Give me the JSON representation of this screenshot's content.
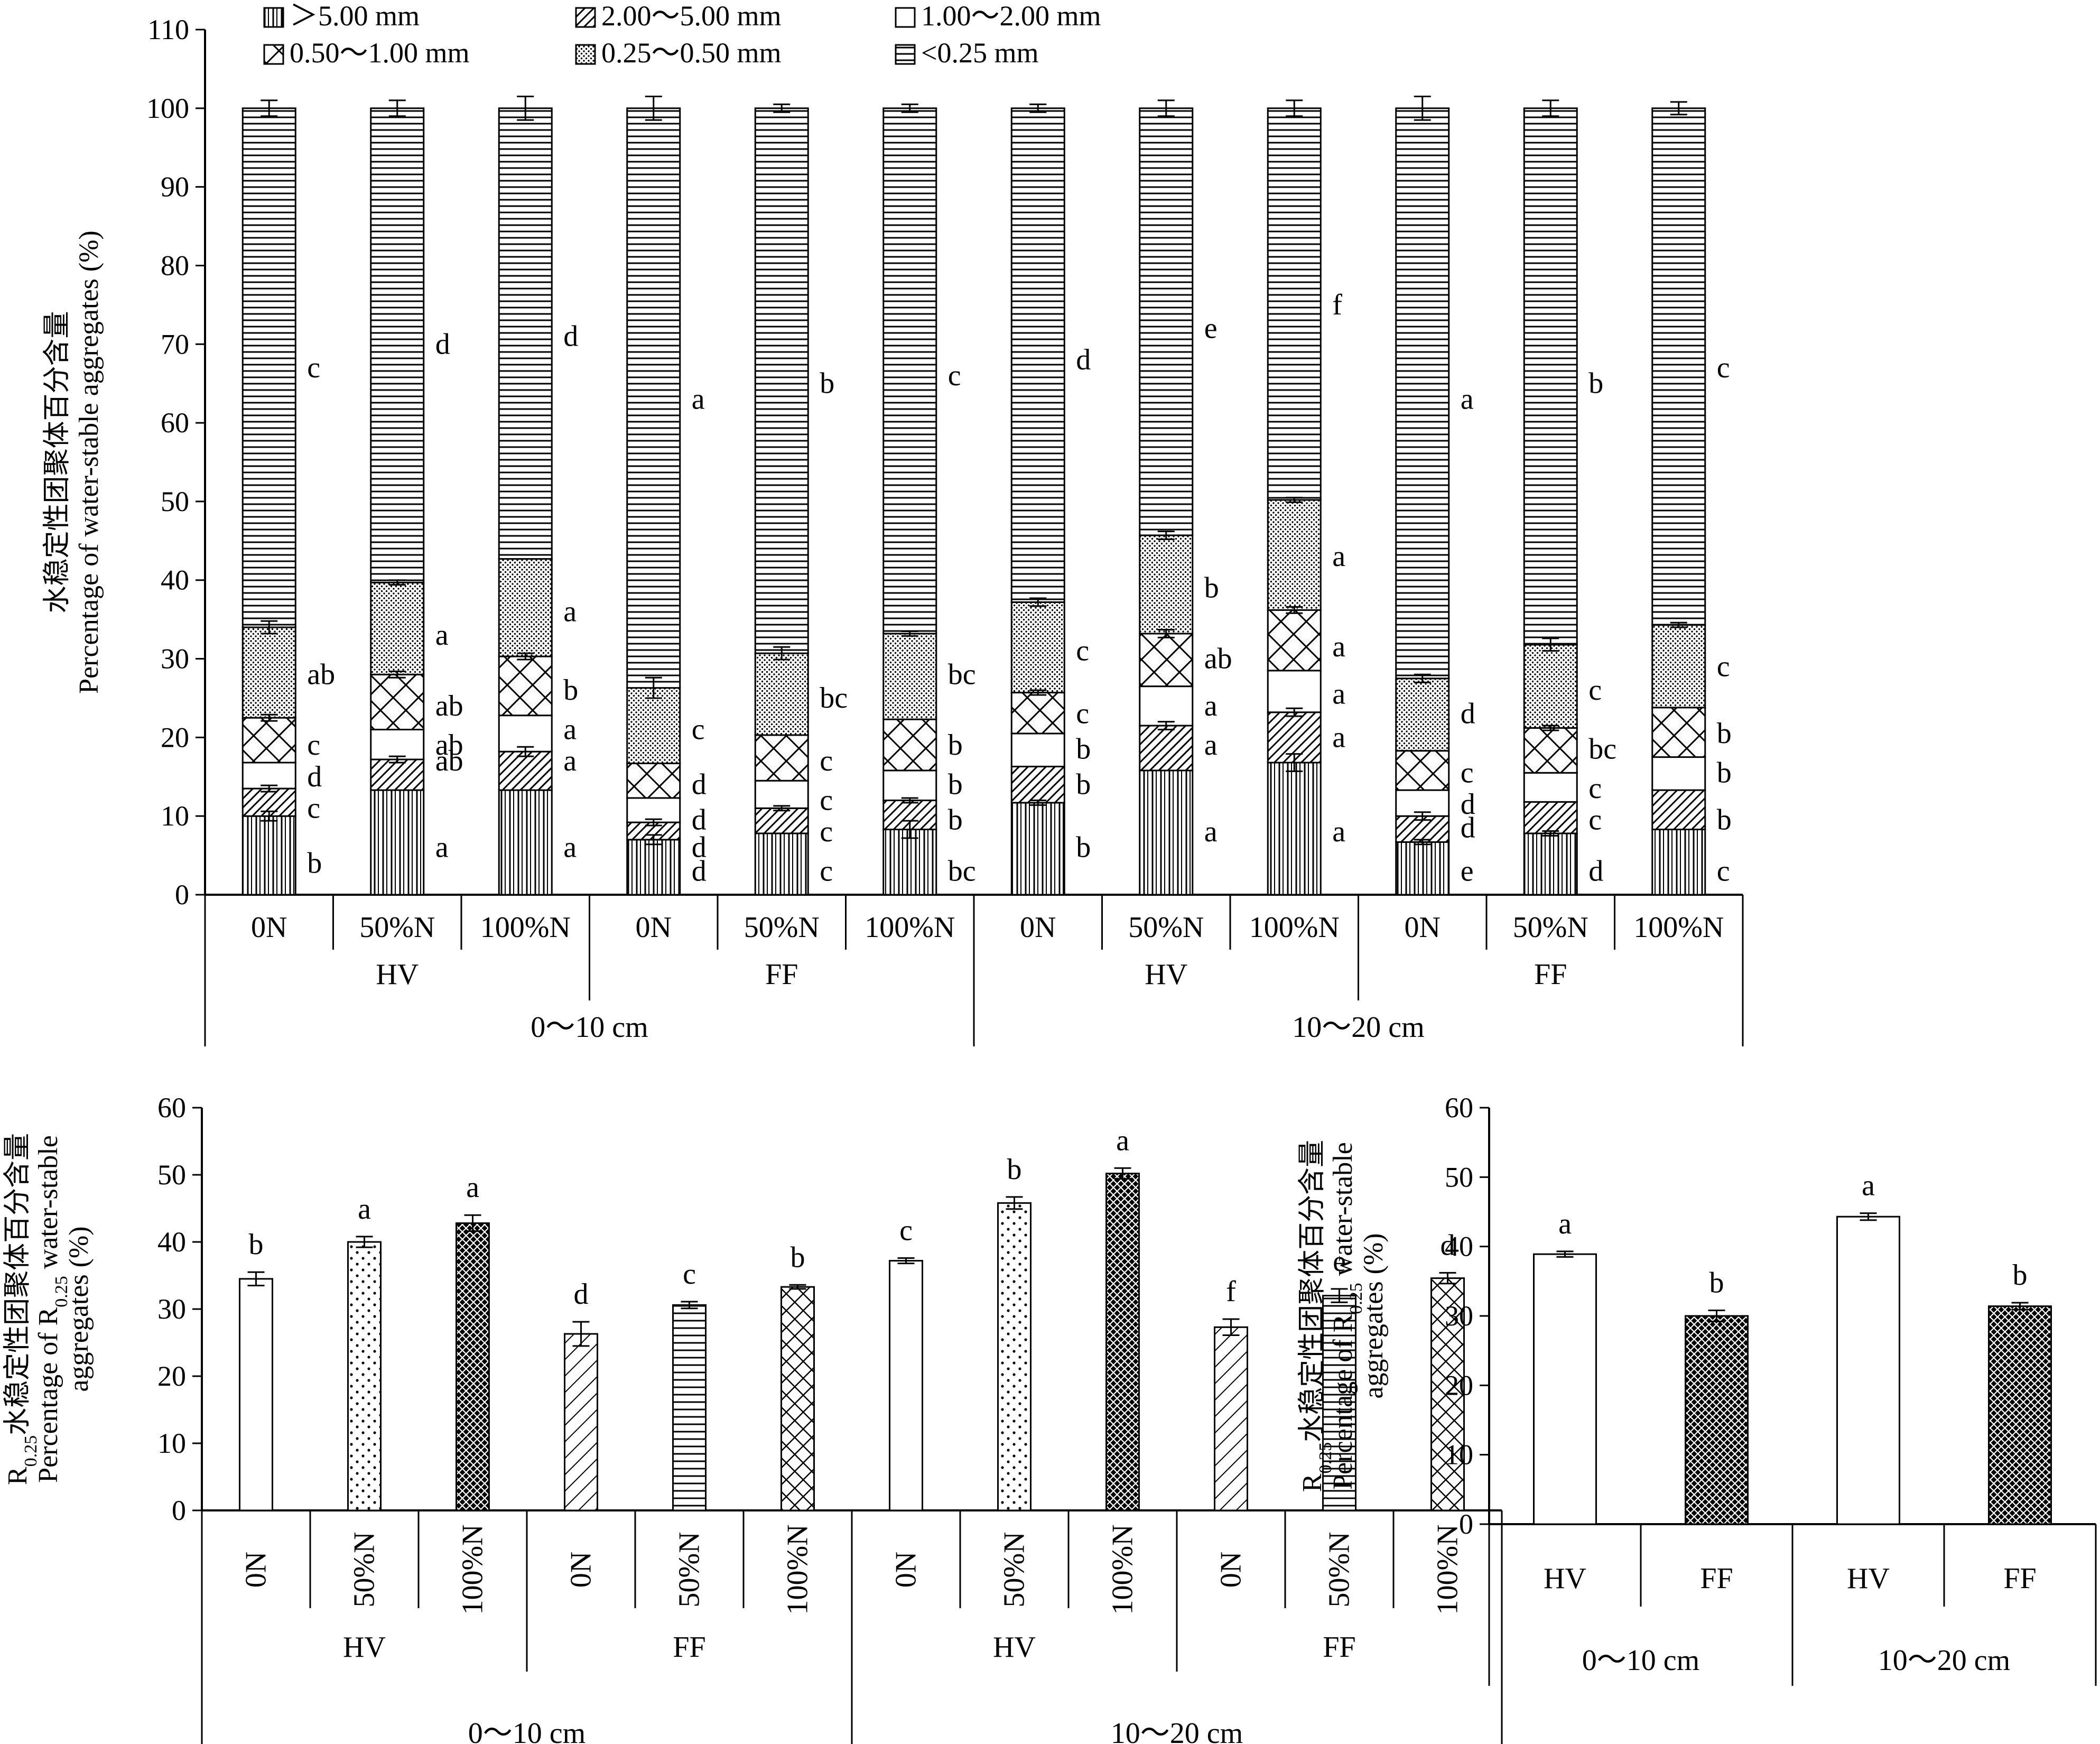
{
  "patterns": {
    "gt5": "vertical lines",
    "p2_5": "diagonal hatch",
    "p1_2": "blank",
    "p05_1": "cross-hatch",
    "p025_05": "dots",
    "lt025": "horizontal lines",
    "fill_100N": "dense crosshatch"
  },
  "chart_data": [
    {
      "type": "bar",
      "subtype": "stacked",
      "yaxis_title": [
        "水稳定性团聚体百分含量",
        "Percentage of  water-stable aggregates (%)"
      ],
      "ylim": [
        0,
        110
      ],
      "yticks": [
        0,
        10,
        20,
        30,
        40,
        50,
        60,
        70,
        80,
        90,
        100,
        110
      ],
      "legend": [
        {
          "key": "gt5",
          "label": "＞5.00 mm"
        },
        {
          "key": "p2_5",
          "label": "2.00～5.00 mm"
        },
        {
          "key": "p1_2",
          "label": "1.00～2.00 mm"
        },
        {
          "key": "p05_1",
          "label": "0.50～1.00 mm"
        },
        {
          "key": "p025_05",
          "label": "0.25～0.50 mm"
        },
        {
          "key": "lt025",
          "label": "<0.25 mm"
        }
      ],
      "legend_position": "top",
      "group_levels": {
        "treatments": [
          "0N",
          "50%N",
          "100%N",
          "0N",
          "50%N",
          "100%N",
          "0N",
          "50%N",
          "100%N",
          "0N",
          "50%N",
          "100%N"
        ],
        "systems": [
          "HV",
          "FF",
          "HV",
          "FF"
        ],
        "depths": [
          "0～10 cm",
          "10～20 cm"
        ]
      },
      "cumulative_tops": [
        [
          10.0,
          13.5,
          16.8,
          22.5,
          34.0,
          100
        ],
        [
          13.3,
          17.2,
          21.0,
          28.0,
          39.7,
          100
        ],
        [
          13.3,
          18.2,
          22.8,
          30.3,
          42.7,
          100
        ],
        [
          7.0,
          9.2,
          12.3,
          16.7,
          26.3,
          100
        ],
        [
          7.8,
          11.0,
          14.5,
          20.3,
          30.7,
          100
        ],
        [
          8.3,
          12.0,
          15.8,
          22.3,
          33.2,
          100
        ],
        [
          11.7,
          16.3,
          20.5,
          25.7,
          37.2,
          100
        ],
        [
          15.8,
          21.5,
          26.5,
          33.2,
          45.7,
          100
        ],
        [
          16.8,
          23.2,
          28.5,
          36.2,
          50.2,
          100
        ],
        [
          6.7,
          10.0,
          13.3,
          18.3,
          27.5,
          100
        ],
        [
          7.8,
          11.8,
          15.5,
          21.2,
          31.8,
          100
        ],
        [
          8.3,
          13.3,
          17.5,
          23.8,
          34.3,
          100
        ]
      ],
      "error_bars": [
        [
          0.6,
          0.4,
          0,
          0.4,
          0.8,
          1.0
        ],
        [
          0,
          0.4,
          0,
          0.4,
          0.3,
          1.0
        ],
        [
          0,
          0.6,
          0,
          0.4,
          0,
          1.5
        ],
        [
          0.6,
          0.4,
          0,
          0,
          1.3,
          1.5
        ],
        [
          0,
          0.3,
          0,
          0,
          0.8,
          0.5
        ],
        [
          1.1,
          0.3,
          0,
          0,
          0.3,
          0.5
        ],
        [
          0.3,
          0,
          0,
          0.3,
          0.5,
          0.5
        ],
        [
          0,
          0.5,
          0,
          0.5,
          0.5,
          1.0
        ],
        [
          1.1,
          0.5,
          0,
          0.4,
          0.3,
          1.0
        ],
        [
          0.3,
          0.5,
          0,
          0,
          0.5,
          1.5
        ],
        [
          0.3,
          0,
          0,
          0.3,
          0.8,
          1.0
        ],
        [
          0,
          0,
          0,
          0,
          0.3,
          0.8
        ]
      ],
      "letters": [
        [
          "b",
          "c",
          "d",
          "c",
          "ab",
          "c"
        ],
        [
          "a",
          "ab",
          "ab",
          "ab",
          "a",
          "d"
        ],
        [
          "a",
          "a",
          "a",
          "b",
          "a",
          "d"
        ],
        [
          "d",
          "d",
          "d",
          "d",
          "c",
          "a"
        ],
        [
          "c",
          "c",
          "c",
          "c",
          "bc",
          "b"
        ],
        [
          "bc",
          "b",
          "b",
          "b",
          "bc",
          "c"
        ],
        [
          "b",
          "b",
          "b",
          "c",
          "c",
          "d"
        ],
        [
          "a",
          "a",
          "a",
          "ab",
          "b",
          "e"
        ],
        [
          "a",
          "a",
          "a",
          "a",
          "a",
          "f"
        ],
        [
          "e",
          "d",
          "d",
          "c",
          "d",
          "a"
        ],
        [
          "d",
          "c",
          "c",
          "bc",
          "c",
          "b"
        ],
        [
          "c",
          "b",
          "b",
          "b",
          "c",
          "c"
        ]
      ],
      "letter_y": [
        [
          4,
          11,
          15,
          19,
          28,
          67
        ],
        [
          6,
          17,
          19,
          24,
          33,
          70
        ],
        [
          6,
          17,
          21,
          26,
          36,
          71
        ],
        [
          3,
          6,
          9.5,
          14,
          21,
          63
        ],
        [
          3,
          8,
          12,
          17,
          25,
          65
        ],
        [
          3,
          9.5,
          14,
          19,
          28,
          66
        ],
        [
          6,
          14,
          18.5,
          23,
          31,
          68
        ],
        [
          8,
          19,
          24,
          30,
          39,
          72
        ],
        [
          8,
          20,
          25.5,
          31.5,
          43,
          75
        ],
        [
          3,
          8.5,
          11.5,
          15.5,
          23,
          63
        ],
        [
          3,
          9.5,
          13.5,
          18.5,
          26,
          65
        ],
        [
          3,
          9.5,
          15.5,
          20.5,
          29,
          67
        ]
      ]
    },
    {
      "type": "bar",
      "yaxis_title": [
        "R0.25水稳定性团聚体百分含量",
        "Percentage of R0.25 water-stable",
        "aggregates (%)"
      ],
      "ylim": [
        0,
        60
      ],
      "yticks": [
        0,
        10,
        20,
        30,
        40,
        50,
        60
      ],
      "categories": [
        "0N",
        "50%N",
        "100%N",
        "0N",
        "50%N",
        "100%N",
        "0N",
        "50%N",
        "100%N",
        "0N",
        "50%N",
        "100%N"
      ],
      "systems": [
        "HV",
        "FF",
        "HV",
        "FF"
      ],
      "depths": [
        "0～10 cm",
        "10～20 cm"
      ],
      "values": [
        34.5,
        40.0,
        42.8,
        26.3,
        30.6,
        33.3,
        37.2,
        45.8,
        50.2,
        27.3,
        32.0,
        34.6
      ],
      "errors": [
        1.0,
        0.8,
        1.2,
        1.8,
        0.5,
        0.3,
        0.4,
        0.9,
        0.8,
        1.2,
        1.0,
        0.8
      ],
      "letters": [
        "b",
        "a",
        "a",
        "d",
        "c",
        "b",
        "c",
        "b",
        "a",
        "f",
        "e",
        "d"
      ]
    },
    {
      "type": "bar",
      "yaxis_title": [
        "R0.25水稳定性团聚体百分含量",
        "Percentage of R0.25 water-stable",
        "aggregates (%)"
      ],
      "ylim": [
        0,
        60
      ],
      "yticks": [
        0,
        10,
        20,
        30,
        40,
        50,
        60
      ],
      "categories": [
        "HV",
        "FF",
        "HV",
        "FF"
      ],
      "depths": [
        "0～10 cm",
        "10～20 cm"
      ],
      "values": [
        38.9,
        30.0,
        44.3,
        31.4
      ],
      "errors": [
        0.4,
        0.8,
        0.5,
        0.5
      ],
      "letters": [
        "a",
        "b",
        "a",
        "b"
      ]
    }
  ]
}
